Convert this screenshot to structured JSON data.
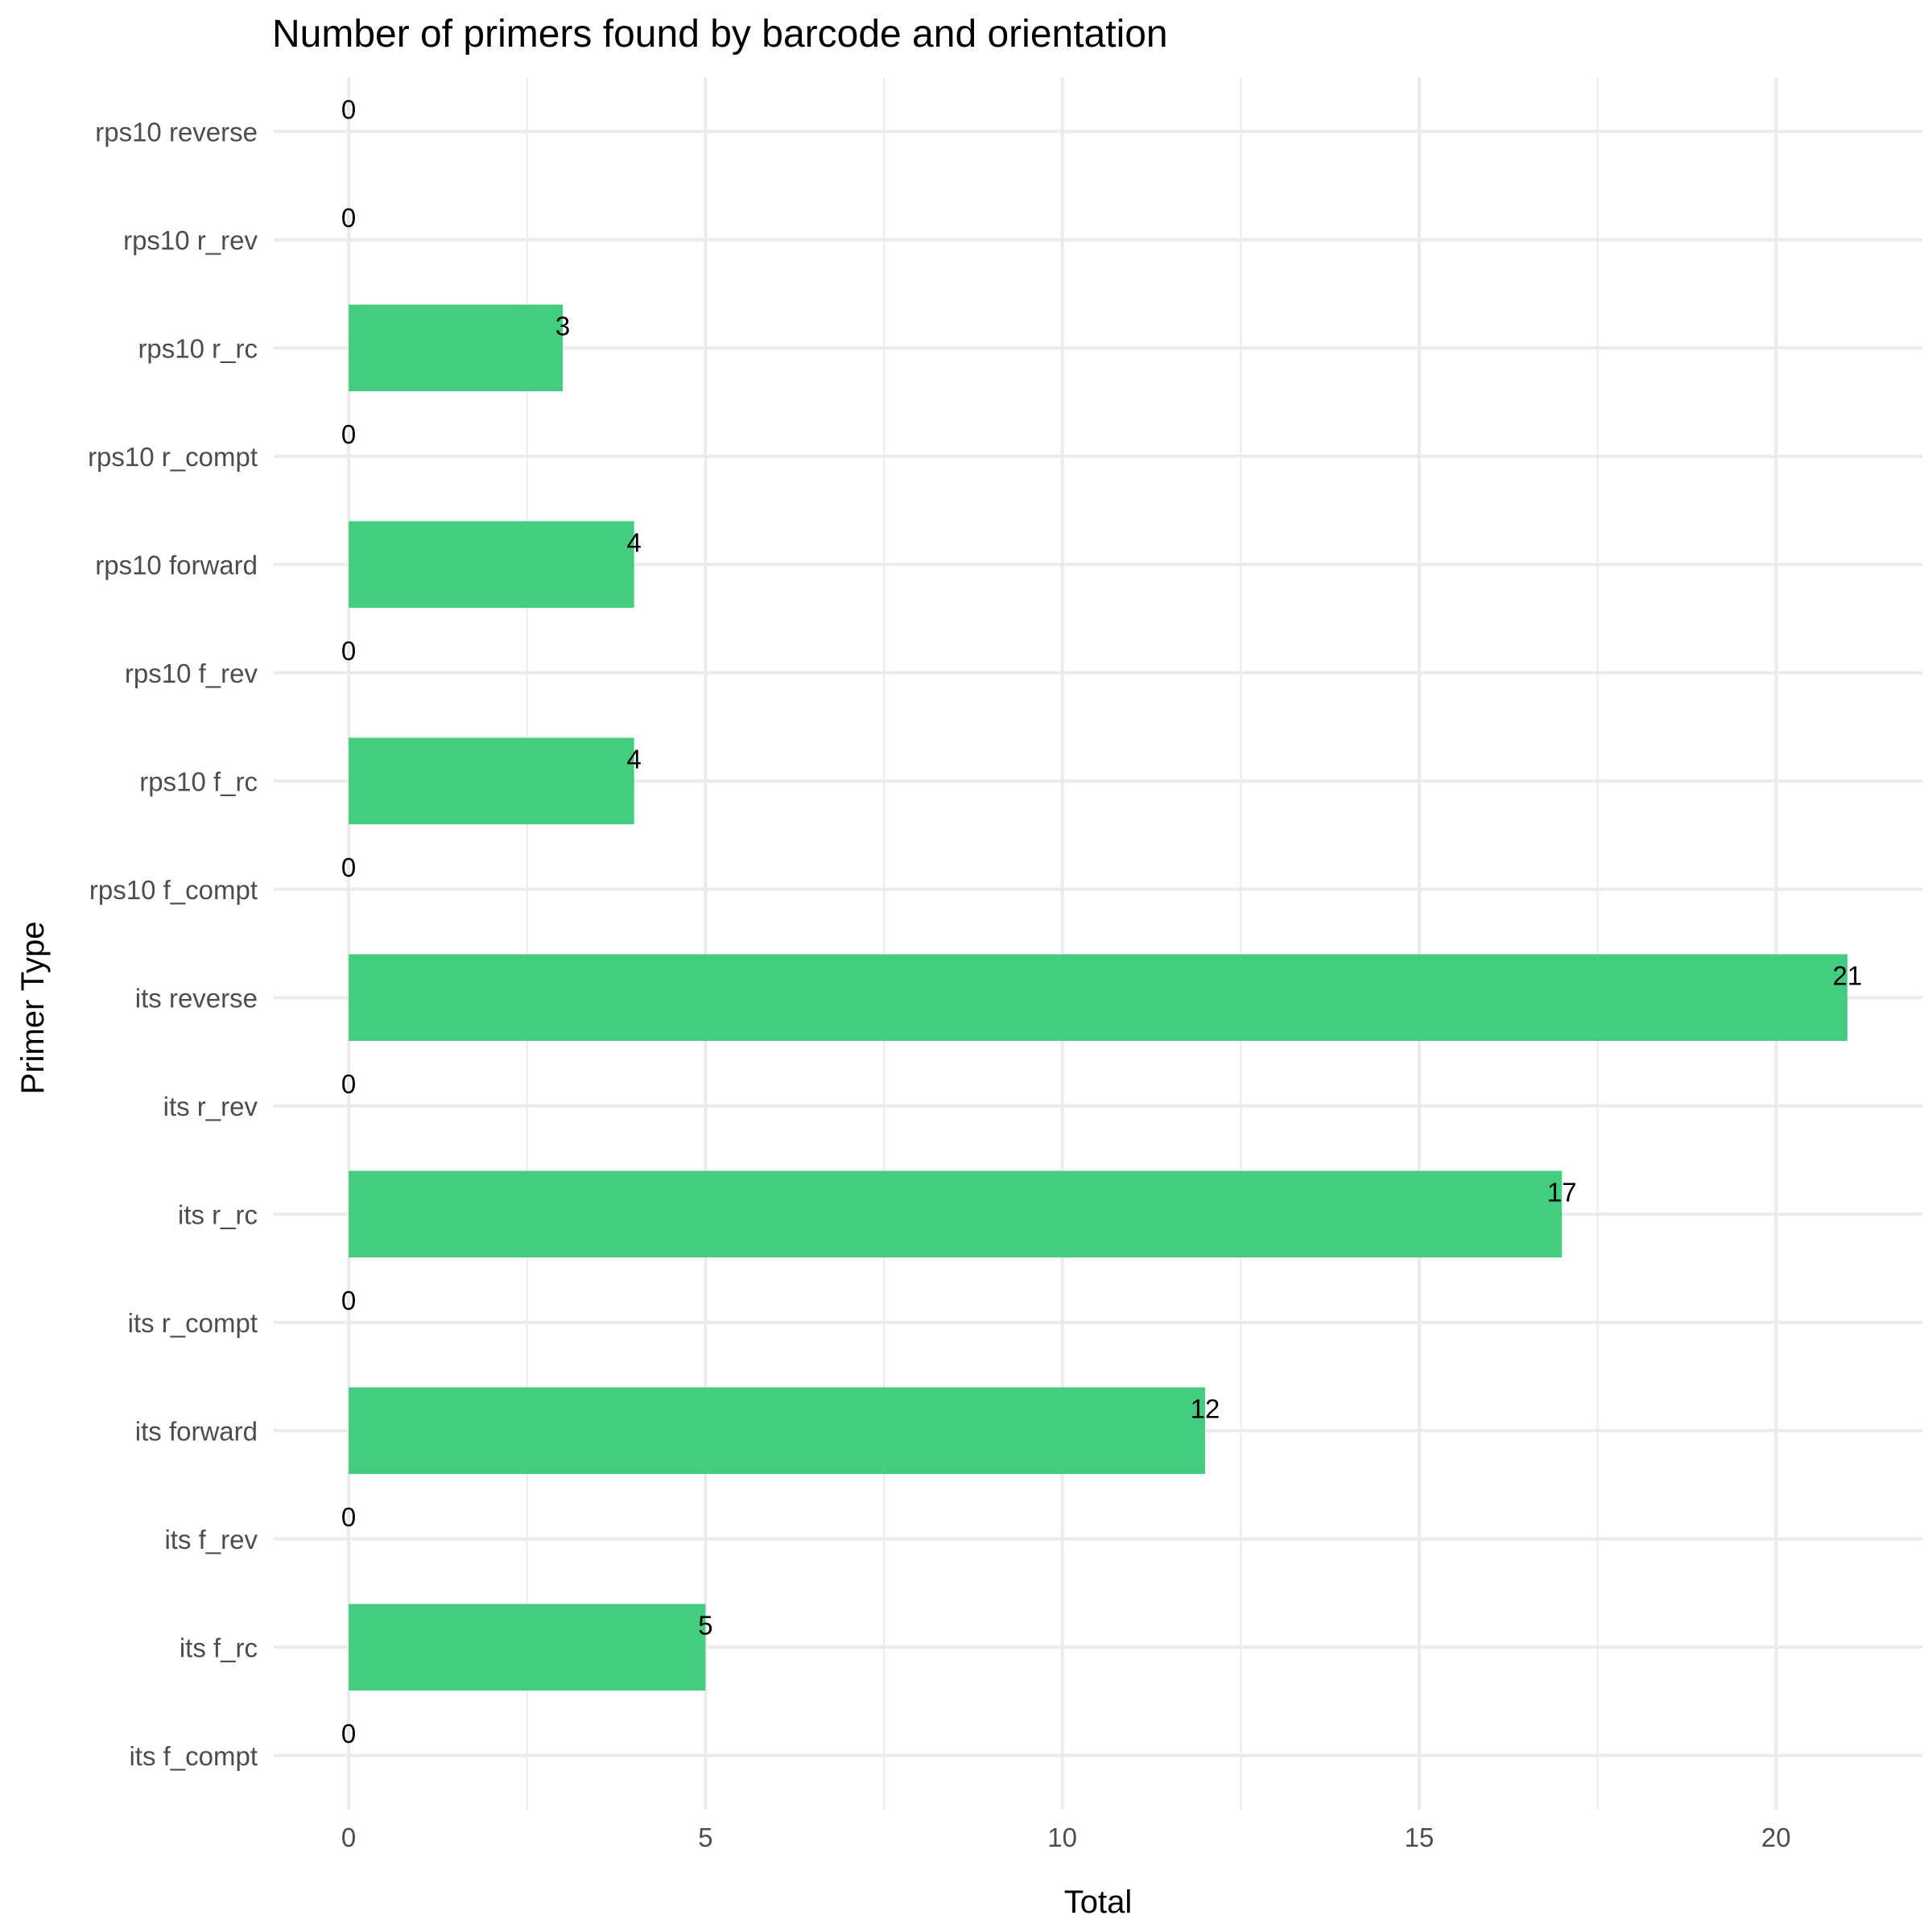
{
  "chart_data": {
    "type": "bar",
    "orientation": "horizontal",
    "title": "Number of primers found by barcode and orientation",
    "xlabel": "Total",
    "ylabel": "Primer Type",
    "categories": [
      "its f_compt",
      "its f_rc",
      "its f_rev",
      "its forward",
      "its r_compt",
      "its r_rc",
      "its r_rev",
      "its reverse",
      "rps10 f_compt",
      "rps10 f_rc",
      "rps10 f_rev",
      "rps10 forward",
      "rps10 r_compt",
      "rps10 r_rc",
      "rps10 r_rev",
      "rps10 reverse"
    ],
    "values": [
      0,
      5,
      0,
      12,
      0,
      17,
      0,
      21,
      0,
      4,
      0,
      4,
      0,
      3,
      0,
      0
    ],
    "xlim": [
      -1.05,
      22.05
    ],
    "xticks": [
      0,
      5,
      10,
      15,
      20
    ],
    "grid": true,
    "legend": "none",
    "bar_color": "#44cd80"
  }
}
